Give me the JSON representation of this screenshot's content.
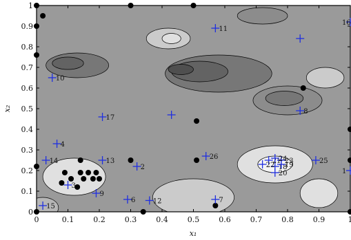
{
  "chart_data": {
    "type": "contour",
    "xlabel": "x₁",
    "ylabel": "x₂",
    "xlim": [
      0,
      1
    ],
    "ylim": [
      0,
      1
    ],
    "xticks": [
      "0",
      "0.1",
      "0.2",
      "0.3",
      "0.4",
      "0.5",
      "0.6",
      "0.7",
      "0.8",
      "0.9",
      "1"
    ],
    "yticks": [
      "0",
      "0.1",
      "0.2",
      "0.3",
      "0.4",
      "0.5",
      "0.6",
      "0.7",
      "0.8",
      "0.9",
      "1"
    ],
    "grid": false,
    "colormap": "grayscale",
    "colors": {
      "levels": [
        "#f4f4f4",
        "#e0e0e0",
        "#cbcbcb",
        "#b6b6b6",
        "#a1a1a1",
        "#8c8c8c",
        "#777777",
        "#636363",
        "#4f4f4f"
      ],
      "marker_plus": "#1f2fe0",
      "marker_dot": "#000000"
    },
    "labeled_points": [
      {
        "label": "1",
        "x": 1.0,
        "y": 0.2
      },
      {
        "label": "2",
        "x": 0.32,
        "y": 0.22
      },
      {
        "label": "3",
        "x": 0.1,
        "y": 0.13
      },
      {
        "label": "4",
        "x": 0.065,
        "y": 0.33
      },
      {
        "label": "6",
        "x": 0.29,
        "y": 0.06
      },
      {
        "label": "7",
        "x": 0.57,
        "y": 0.06
      },
      {
        "label": "8",
        "x": 0.84,
        "y": 0.49
      },
      {
        "label": "9",
        "x": 0.19,
        "y": 0.09
      },
      {
        "label": "10",
        "x": 0.05,
        "y": 0.65
      },
      {
        "label": "11",
        "x": 0.57,
        "y": 0.89
      },
      {
        "label": "12",
        "x": 0.36,
        "y": 0.055
      },
      {
        "label": "13",
        "x": 0.21,
        "y": 0.25
      },
      {
        "label": "14",
        "x": 0.03,
        "y": 0.25
      },
      {
        "label": "15",
        "x": 0.02,
        "y": 0.03
      },
      {
        "label": "16",
        "x": 1.0,
        "y": 0.92
      },
      {
        "label": "17",
        "x": 0.21,
        "y": 0.46
      },
      {
        "label": "18",
        "x": 0.76,
        "y": 0.22
      },
      {
        "label": "19",
        "x": 0.78,
        "y": 0.23
      },
      {
        "label": "20",
        "x": 0.76,
        "y": 0.19
      },
      {
        "label": "21",
        "x": 0.74,
        "y": 0.25
      },
      {
        "label": "22",
        "x": 0.72,
        "y": 0.23
      },
      {
        "label": "23",
        "x": 0.78,
        "y": 0.25
      },
      {
        "label": "24",
        "x": 0.76,
        "y": 0.26
      },
      {
        "label": "25",
        "x": 0.89,
        "y": 0.25
      },
      {
        "label": "26",
        "x": 0.54,
        "y": 0.27
      }
    ],
    "unlabeled_plus": [
      {
        "x": 0.43,
        "y": 0.47
      },
      {
        "x": 0.84,
        "y": 0.84
      }
    ],
    "dots": [
      {
        "x": 0.0,
        "y": 1.0
      },
      {
        "x": 0.3,
        "y": 1.0
      },
      {
        "x": 0.5,
        "y": 1.0
      },
      {
        "x": 0.02,
        "y": 0.95
      },
      {
        "x": 0.0,
        "y": 0.9
      },
      {
        "x": 0.0,
        "y": 0.76
      },
      {
        "x": 0.85,
        "y": 0.6
      },
      {
        "x": 1.0,
        "y": 0.4
      },
      {
        "x": 0.51,
        "y": 0.44
      },
      {
        "x": 0.0,
        "y": 0.22
      },
      {
        "x": 0.51,
        "y": 0.25
      },
      {
        "x": 0.3,
        "y": 0.25
      },
      {
        "x": 0.14,
        "y": 0.25
      },
      {
        "x": 0.09,
        "y": 0.19
      },
      {
        "x": 0.11,
        "y": 0.16
      },
      {
        "x": 0.14,
        "y": 0.19
      },
      {
        "x": 0.165,
        "y": 0.19
      },
      {
        "x": 0.19,
        "y": 0.19
      },
      {
        "x": 0.15,
        "y": 0.16
      },
      {
        "x": 0.18,
        "y": 0.16
      },
      {
        "x": 0.2,
        "y": 0.16
      },
      {
        "x": 0.08,
        "y": 0.14
      },
      {
        "x": 0.13,
        "y": 0.12
      },
      {
        "x": 0.0,
        "y": 0.0
      },
      {
        "x": 0.34,
        "y": 0.0
      },
      {
        "x": 0.57,
        "y": 0.03
      },
      {
        "x": 1.0,
        "y": 0.25
      },
      {
        "x": 1.0,
        "y": 0.0
      }
    ],
    "regions": [
      {
        "level": 1,
        "cx": 0.76,
        "cy": 0.23,
        "rx": 0.12,
        "ry": 0.09
      },
      {
        "level": 0,
        "cx": 0.76,
        "cy": 0.23,
        "rx": 0.055,
        "ry": 0.04
      },
      {
        "level": 2,
        "cx": 0.5,
        "cy": 0.07,
        "rx": 0.13,
        "ry": 0.09
      },
      {
        "level": 1,
        "cx": 0.9,
        "cy": 0.09,
        "rx": 0.06,
        "ry": 0.07
      },
      {
        "level": 1,
        "cx": 0.12,
        "cy": 0.17,
        "rx": 0.1,
        "ry": 0.09
      },
      {
        "level": 6,
        "cx": 0.58,
        "cy": 0.67,
        "rx": 0.17,
        "ry": 0.09
      },
      {
        "level": 7,
        "cx": 0.52,
        "cy": 0.68,
        "rx": 0.09,
        "ry": 0.05
      },
      {
        "level": 8,
        "cx": 0.46,
        "cy": 0.69,
        "rx": 0.04,
        "ry": 0.025
      },
      {
        "level": 6,
        "cx": 0.13,
        "cy": 0.71,
        "rx": 0.1,
        "ry": 0.06
      },
      {
        "level": 7,
        "cx": 0.1,
        "cy": 0.72,
        "rx": 0.05,
        "ry": 0.03
      },
      {
        "level": 5,
        "cx": 0.8,
        "cy": 0.54,
        "rx": 0.11,
        "ry": 0.07
      },
      {
        "level": 6,
        "cx": 0.79,
        "cy": 0.55,
        "rx": 0.06,
        "ry": 0.035
      },
      {
        "level": 2,
        "cx": 0.42,
        "cy": 0.84,
        "rx": 0.07,
        "ry": 0.05
      },
      {
        "level": 1,
        "cx": 0.43,
        "cy": 0.84,
        "rx": 0.03,
        "ry": 0.025
      },
      {
        "level": 2,
        "cx": 0.92,
        "cy": 0.65,
        "rx": 0.06,
        "ry": 0.05
      },
      {
        "level": 5,
        "cx": 0.72,
        "cy": 0.95,
        "rx": 0.08,
        "ry": 0.04
      },
      {
        "level": 3,
        "cx": 0.02,
        "cy": 0.02,
        "rx": 0.05,
        "ry": 0.05
      }
    ]
  }
}
